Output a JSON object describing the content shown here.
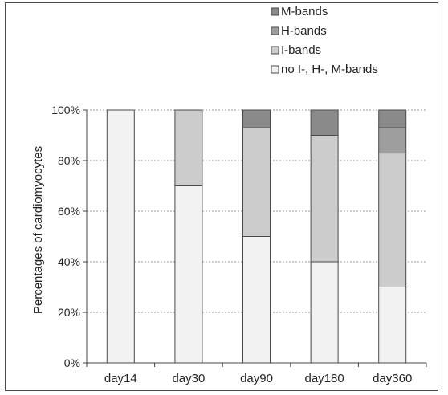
{
  "chart_data": {
    "type": "bar",
    "stacked": true,
    "ylabel": "Percentages of cardiomyocytes",
    "xlabel": "",
    "ylim": [
      0,
      100
    ],
    "y_unit": "%",
    "yticks": [
      "0%",
      "20%",
      "40%",
      "60%",
      "80%",
      "100%"
    ],
    "categories": [
      "day14",
      "day30",
      "day90",
      "day180",
      "day360"
    ],
    "series": [
      {
        "name": "no I-, H-, M-bands",
        "values": [
          100,
          70,
          50,
          40,
          30
        ],
        "color": "#f2f2f2"
      },
      {
        "name": "I-bands",
        "values": [
          0,
          30,
          43,
          50,
          53
        ],
        "color": "#cccccc"
      },
      {
        "name": "H-bands",
        "values": [
          0,
          0,
          0,
          0,
          10
        ],
        "color": "#9e9e9e"
      },
      {
        "name": "M-bands",
        "values": [
          0,
          0,
          7,
          10,
          7
        ],
        "color": "#8a8a8a"
      }
    ],
    "legend_position": "top-right",
    "grid": true
  }
}
